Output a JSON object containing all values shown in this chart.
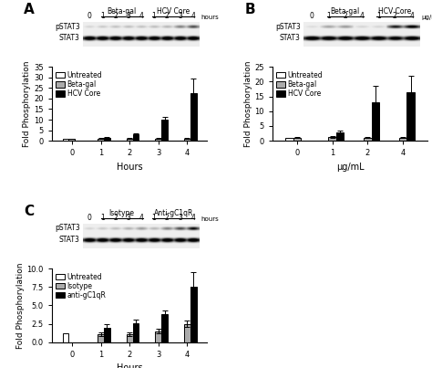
{
  "panel_A": {
    "label": "A",
    "blot_label1": "Beta-gal",
    "blot_label2": "HCV Core",
    "blot_cols": [
      "0",
      "1",
      "2",
      "3",
      "4",
      "1",
      "2",
      "3",
      "4"
    ],
    "blot_col_label": "hours",
    "n_label1_skip0": true,
    "pstat3_intensities": [
      0.88,
      0.85,
      0.83,
      0.82,
      0.83,
      0.82,
      0.8,
      0.65,
      0.5
    ],
    "stat3_intensities": [
      0.2,
      0.22,
      0.22,
      0.23,
      0.22,
      0.23,
      0.22,
      0.23,
      0.22
    ],
    "xlabel": "Hours",
    "ylabel": "Fold Phosphorylation",
    "ylim": [
      0,
      35
    ],
    "yticks": [
      0,
      5,
      10,
      15,
      20,
      25,
      30,
      35
    ],
    "xticks": [
      0,
      1,
      2,
      3,
      4
    ],
    "groups": [
      "Untreated",
      "Beta-gal",
      "HCV Core"
    ],
    "group_colors": [
      "white",
      "#aaaaaa",
      "black"
    ],
    "data_untreated": [
      [
        0,
        1.0,
        0.0
      ]
    ],
    "data_second": [
      [
        0,
        1.0,
        0.1
      ],
      [
        1,
        1.0,
        0.15
      ],
      [
        2,
        1.0,
        0.15
      ],
      [
        3,
        1.0,
        0.15
      ],
      [
        4,
        1.0,
        0.15
      ]
    ],
    "data_third": [
      [
        1,
        1.5,
        0.2
      ],
      [
        2,
        3.0,
        0.5
      ],
      [
        3,
        10.0,
        1.5
      ],
      [
        4,
        22.5,
        7.0
      ]
    ]
  },
  "panel_B": {
    "label": "B",
    "blot_label1": "Beta-gal",
    "blot_label2": "HCV Core",
    "blot_cols": [
      "0",
      "1",
      "2",
      "4",
      "1",
      "2",
      "4"
    ],
    "blot_col_label": "μg/mL",
    "n_label1_skip0": true,
    "pstat3_intensities": [
      0.9,
      0.75,
      0.72,
      0.88,
      0.88,
      0.35,
      0.2
    ],
    "stat3_intensities": [
      0.2,
      0.22,
      0.22,
      0.22,
      0.23,
      0.3,
      0.22
    ],
    "xlabel": "μg/mL",
    "ylabel": "Fold Phosphorylation",
    "ylim": [
      0,
      25
    ],
    "yticks": [
      0,
      5,
      10,
      15,
      20,
      25
    ],
    "xticks": [
      0,
      1,
      2,
      4
    ],
    "groups": [
      "Untreated",
      "Beta-gal",
      "HCV Core"
    ],
    "group_colors": [
      "white",
      "#aaaaaa",
      "black"
    ],
    "data_untreated": [
      [
        0,
        1.0,
        0.0
      ]
    ],
    "data_second": [
      [
        0,
        1.0,
        0.15
      ],
      [
        1,
        1.2,
        0.3
      ],
      [
        2,
        1.0,
        0.2
      ],
      [
        4,
        1.0,
        0.15
      ]
    ],
    "data_third": [
      [
        1,
        2.8,
        0.5
      ],
      [
        2,
        13.0,
        5.5
      ],
      [
        4,
        16.5,
        5.5
      ]
    ]
  },
  "panel_C": {
    "label": "C",
    "blot_label1": "Isotype",
    "blot_label2": "Anti-gC1qR",
    "blot_cols": [
      "0",
      "1",
      "2",
      "3",
      "4",
      "1",
      "2",
      "3",
      "4"
    ],
    "blot_col_label": "hours",
    "n_label1_skip0": true,
    "pstat3_intensities": [
      0.88,
      0.85,
      0.82,
      0.78,
      0.72,
      0.8,
      0.65,
      0.5,
      0.3
    ],
    "stat3_intensities": [
      0.2,
      0.22,
      0.22,
      0.23,
      0.22,
      0.23,
      0.22,
      0.22,
      0.2
    ],
    "xlabel": "Hours",
    "ylabel": "Fold Phosphorylation",
    "ylim": [
      0,
      10
    ],
    "yticks": [
      0.0,
      2.5,
      5.0,
      7.5,
      10.0
    ],
    "yticklabels": [
      "0.0",
      "2.5",
      "5.0",
      "7.5",
      "10.0"
    ],
    "xticks": [
      0,
      1,
      2,
      3,
      4
    ],
    "groups": [
      "Untreated",
      "Isotype",
      "anti-gC1qR"
    ],
    "group_colors": [
      "white",
      "#aaaaaa",
      "black"
    ],
    "data_untreated": [
      [
        0,
        1.2,
        0.0
      ]
    ],
    "data_second": [
      [
        1,
        1.1,
        0.25
      ],
      [
        2,
        1.1,
        0.25
      ],
      [
        3,
        1.5,
        0.3
      ],
      [
        4,
        2.5,
        0.4
      ]
    ],
    "data_third": [
      [
        1,
        2.0,
        0.5
      ],
      [
        2,
        2.6,
        0.5
      ],
      [
        3,
        3.8,
        0.5
      ],
      [
        4,
        7.5,
        2.0
      ]
    ]
  }
}
